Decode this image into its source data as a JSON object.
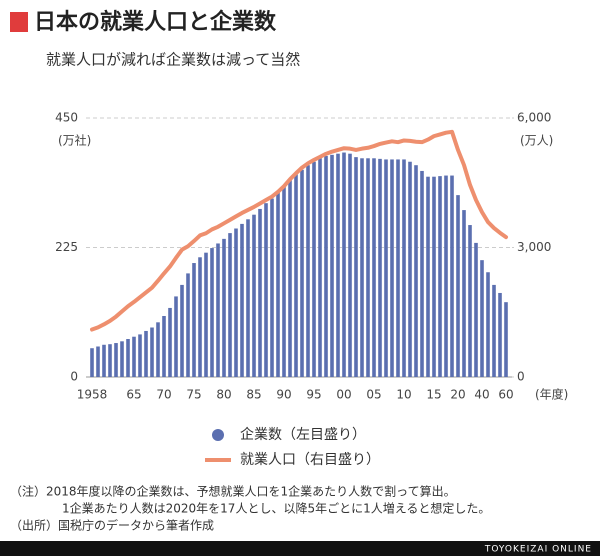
{
  "chart_data": {
    "type": "combo",
    "title": "日本の就業人口と企業数",
    "subtitle": "就業人口が減れば企業数は減って当然",
    "y_label": "(万社)",
    "y2_label": "(万人)",
    "x_label": "(年度)",
    "categories": [
      "1958",
      null,
      null,
      null,
      null,
      null,
      null,
      "65",
      null,
      null,
      null,
      null,
      "70",
      null,
      null,
      null,
      null,
      "75",
      null,
      null,
      null,
      null,
      "80",
      null,
      null,
      null,
      null,
      "85",
      null,
      null,
      null,
      null,
      "90",
      null,
      null,
      null,
      null,
      "95",
      null,
      null,
      null,
      null,
      "00",
      null,
      null,
      null,
      null,
      "05",
      null,
      null,
      null,
      null,
      "10",
      null,
      null,
      null,
      null,
      "15",
      null,
      null,
      null,
      "20",
      null,
      null,
      null,
      "40",
      null,
      null,
      null,
      "60"
    ],
    "series": [
      {
        "name": "企業数（左目盛り）",
        "mark": "bar",
        "color": "#5b6fb0",
        "values": [
          50,
          53,
          56,
          57,
          59,
          62,
          66,
          70,
          74,
          80,
          86,
          95,
          106,
          120,
          140,
          160,
          180,
          198,
          208,
          216,
          224,
          232,
          240,
          250,
          258,
          266,
          274,
          282,
          292,
          302,
          310,
          322,
          332,
          342,
          352,
          360,
          368,
          374,
          380,
          384,
          386,
          388,
          390,
          388,
          382,
          380,
          380,
          380,
          379,
          378,
          378,
          378,
          378,
          374,
          368,
          358,
          348,
          348,
          349,
          350,
          350,
          316,
          290,
          264,
          233,
          203,
          182,
          160,
          146,
          130
        ]
      },
      {
        "name": "就業人口（右目盛り）",
        "mark": "line",
        "axis": "y2",
        "color": "#ee8f6e",
        "values": [
          1100,
          1150,
          1220,
          1300,
          1400,
          1520,
          1640,
          1740,
          1850,
          1960,
          2070,
          2230,
          2400,
          2560,
          2760,
          2950,
          3030,
          3150,
          3280,
          3330,
          3420,
          3480,
          3560,
          3640,
          3720,
          3800,
          3870,
          3940,
          4020,
          4100,
          4180,
          4290,
          4420,
          4580,
          4720,
          4850,
          4950,
          5030,
          5100,
          5170,
          5220,
          5260,
          5300,
          5290,
          5260,
          5290,
          5310,
          5350,
          5400,
          5430,
          5460,
          5440,
          5480,
          5470,
          5450,
          5440,
          5500,
          5580,
          5620,
          5660,
          5680,
          5260,
          4910,
          4450,
          4100,
          3820,
          3590,
          3450,
          3340,
          3240
        ]
      }
    ],
    "ylim": [
      0,
      450
    ],
    "yticks": [
      0,
      225,
      450
    ],
    "y2lim": [
      0,
      6000
    ],
    "y2ticks": [
      0,
      {
        "value": 3000,
        "label": "3,000"
      },
      {
        "value": 6000,
        "label": "6,000"
      }
    ],
    "grid": true,
    "notes": [
      "（注）2018年度以降の企業数は、予想就業人口を1企業あたり人数で割って算出。",
      "1企業あたり人数は2020年を17人とし、以降5年ごとに1人増えると想定した。",
      "（出所）国税庁のデータから筆者作成"
    ],
    "footer": "TOYOKEIZAI ONLINE"
  }
}
